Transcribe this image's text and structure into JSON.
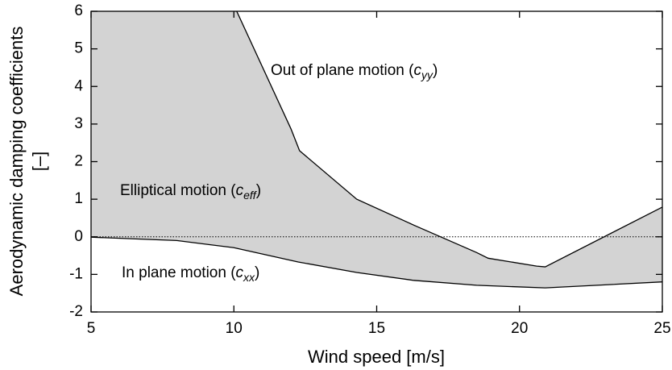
{
  "chart_data": {
    "type": "line",
    "xlabel": "Wind speed [m/s]",
    "ylabel": [
      "Aerodynamic damping coefficients",
      "[–]"
    ],
    "series": [
      {
        "color": "#000000",
        "fill": "#d3d3d3",
        "x": [
          10.1,
          12.0,
          12.3,
          14.3,
          16.3,
          18.5,
          18.9,
          20.6,
          20.9,
          25
        ],
        "values": [
          6,
          2.87,
          2.29,
          1.0,
          0.31,
          -0.42,
          -0.57,
          -0.78,
          -0.8,
          0.79
        ]
      },
      {
        "color": "#000000",
        "x": [
          5,
          8,
          10,
          12.25,
          14.3,
          16.3,
          18.5,
          20.9,
          25
        ],
        "values": [
          -0.01,
          -0.1,
          -0.29,
          -0.67,
          -0.95,
          -1.16,
          -1.29,
          -1.36,
          -1.2
        ]
      }
    ],
    "reference_line": 0,
    "annotations": [
      {
        "prefix": "Out of plane motion (",
        "symbol": "c",
        "subscript": "yy",
        "suffix": ")"
      },
      {
        "prefix": "Elliptical motion (",
        "symbol": "c",
        "subscript": "eff",
        "suffix": ")"
      },
      {
        "prefix": "In plane motion (",
        "symbol": "c",
        "subscript": "xx",
        "suffix": ")"
      }
    ],
    "xlim": [
      5,
      25
    ],
    "xticks": [
      5,
      10,
      15,
      20,
      25
    ],
    "ylim": [
      -2,
      6
    ],
    "yticks": [
      -2,
      -1,
      0,
      1,
      2,
      3,
      4,
      5,
      6
    ]
  }
}
